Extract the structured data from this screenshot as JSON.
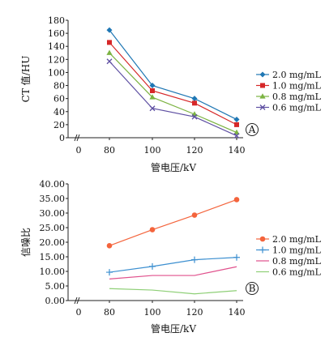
{
  "chart_data": [
    {
      "type": "line",
      "panel_label": "A",
      "ylabel": "CT 值/HU",
      "xlabel": "管电压/kV",
      "x": [
        80,
        100,
        120,
        140
      ],
      "xlim": [
        60,
        140
      ],
      "xticks": [
        "0",
        "80",
        "100",
        "120",
        "140"
      ],
      "ylim": [
        0,
        180
      ],
      "yticks": [
        "0",
        "20",
        "40",
        "60",
        "80",
        "100",
        "120",
        "140",
        "160",
        "180"
      ],
      "grid": false,
      "legend_position": "right",
      "series": [
        {
          "name": "2.0 mg/mL",
          "values": [
            165,
            80,
            60,
            28
          ],
          "color": "#1f77b4",
          "marker": "diamond"
        },
        {
          "name": "1.0 mg/mL",
          "values": [
            146,
            72,
            53,
            20
          ],
          "color": "#d62728",
          "marker": "square"
        },
        {
          "name": "0.8 mg/mL",
          "values": [
            130,
            62,
            36,
            8
          ],
          "color": "#7cb342",
          "marker": "triangle"
        },
        {
          "name": "0.6 mg/mL",
          "values": [
            117,
            45,
            32,
            3
          ],
          "color": "#5e4fa2",
          "marker": "x"
        }
      ]
    },
    {
      "type": "line",
      "panel_label": "B",
      "ylabel": "信噪比",
      "xlabel": "管电压/kV",
      "x": [
        80,
        100,
        120,
        140
      ],
      "xlim": [
        60,
        140
      ],
      "xticks": [
        "0",
        "80",
        "100",
        "120",
        "140"
      ],
      "ylim": [
        0,
        40
      ],
      "yticks": [
        "0.00",
        "5.00",
        "10.00",
        "15.00",
        "20.00",
        "25.00",
        "30.00",
        "35.00",
        "40.00"
      ],
      "grid": false,
      "legend_position": "right",
      "series": [
        {
          "name": "2.0 mg/mL",
          "values": [
            18.8,
            24.3,
            29.3,
            34.6
          ],
          "color": "#f4643c",
          "marker": "circle"
        },
        {
          "name": "1.0 mg/mL",
          "values": [
            9.7,
            11.7,
            14.0,
            14.8
          ],
          "color": "#3c8fd0",
          "marker": "plus"
        },
        {
          "name": "0.8 mg/mL",
          "values": [
            7.4,
            8.6,
            8.6,
            11.6
          ],
          "color": "#e0508c",
          "marker": "none"
        },
        {
          "name": "0.6 mg/mL",
          "values": [
            4.1,
            3.6,
            2.3,
            3.4
          ],
          "color": "#8ecf76",
          "marker": "none"
        }
      ]
    }
  ]
}
